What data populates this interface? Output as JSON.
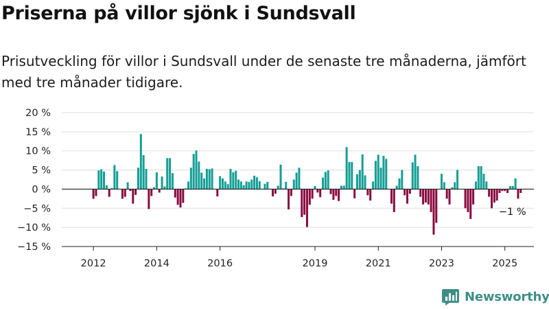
{
  "title": "Priserna på villor sjönk i Sundsvall",
  "subtitle": "Prisutveckling för villor i Sundsvall under de senaste tre månaderna, jämfört med tre månader tidigare.",
  "brand": {
    "name": "Newsworthy",
    "color": "#3d8f85",
    "icon": "bar-chart-logo-icon"
  },
  "colors": {
    "positive": "#139e95",
    "negative": "#8a0a40",
    "grid": "#dddddd",
    "axis": "#222222"
  },
  "chart_data": {
    "type": "bar",
    "x_start": "2011-01",
    "x_end": "2025-12",
    "y_unit": "%",
    "ylim": [
      -15,
      20
    ],
    "yticks": [
      {
        "value": 20,
        "label": "20 %"
      },
      {
        "value": 15,
        "label": "15 %"
      },
      {
        "value": 10,
        "label": "10 %"
      },
      {
        "value": 5,
        "label": "5 %"
      },
      {
        "value": 0,
        "label": "0 %"
      },
      {
        "value": -5,
        "label": "−5 %"
      },
      {
        "value": -10,
        "label": "−10 %"
      },
      {
        "value": -15,
        "label": "−15 %"
      }
    ],
    "xticks": [
      {
        "date": "2012-01",
        "label": "2012"
      },
      {
        "date": "2014-01",
        "label": "2014"
      },
      {
        "date": "2016-01",
        "label": "2016"
      },
      {
        "date": "2019-01",
        "label": "2019"
      },
      {
        "date": "2021-01",
        "label": "2021"
      },
      {
        "date": "2023-01",
        "label": "2023"
      },
      {
        "date": "2025-01",
        "label": "2025"
      }
    ],
    "grid": "horizontal",
    "start_month": "2012-01",
    "values": [
      -2.5,
      -1.8,
      4.9,
      5.2,
      4.6,
      1.0,
      -2.0,
      0.3,
      6.3,
      4.7,
      0,
      -2.5,
      -2.0,
      1.8,
      -0.5,
      -3.8,
      -1.5,
      5.6,
      14.4,
      8.9,
      5.3,
      -5.2,
      -1.8,
      0.5,
      4.4,
      -0.9,
      3.3,
      0.7,
      8.1,
      8.1,
      4.2,
      -2.2,
      -4.1,
      -4.8,
      -3.6,
      0.2,
      2.0,
      5.6,
      9.2,
      10.1,
      7.2,
      4.3,
      2.8,
      5.3,
      5.2,
      5.4,
      0,
      -1.9,
      3.4,
      2.8,
      2.0,
      1.3,
      5.3,
      4.4,
      4.8,
      2.5,
      2.0,
      1.0,
      2.0,
      1.9,
      2.5,
      3.5,
      3.1,
      2.1,
      0,
      1.4,
      1.9,
      0,
      -1.9,
      -1.2,
      0.9,
      6.4,
      0.2,
      1.9,
      -5.3,
      -1.8,
      2.5,
      4.3,
      5.6,
      -7.3,
      -6.7,
      -9.9,
      -4.1,
      -2.5,
      0.8,
      -0.9,
      -2.1,
      3.0,
      4.5,
      4.9,
      -1.3,
      -2.8,
      -1.8,
      -3.1,
      0.9,
      0.9,
      11.0,
      7.1,
      7.1,
      -2.4,
      3.9,
      5.0,
      9.1,
      3.6,
      -1.6,
      -3.0,
      2.0,
      7.4,
      9.0,
      5.6,
      8.7,
      7.9,
      0,
      -3.8,
      -6.0,
      0.9,
      2.8,
      5.0,
      -1.6,
      -3.8,
      -1.2,
      7.0,
      9.0,
      6.0,
      -2.0,
      -4.0,
      -3.5,
      -4.0,
      -6.0,
      -11.9,
      -8.8,
      0,
      4.0,
      1.8,
      -2.5,
      -4.0,
      0.5,
      1.8,
      5.0,
      0,
      0,
      -5.0,
      -6.0,
      -7.8,
      -4.0,
      2.0,
      6.0,
      6.0,
      4.0,
      2.0,
      -2.0,
      -5.0,
      -3.5,
      -3.0,
      -1.0,
      -0.5,
      -0.5,
      -1.0,
      0.8,
      0.8,
      2.8,
      -2.5,
      -1.0
    ],
    "annotation": {
      "text": "−1 %",
      "date": "2025-07",
      "value": -1
    }
  }
}
